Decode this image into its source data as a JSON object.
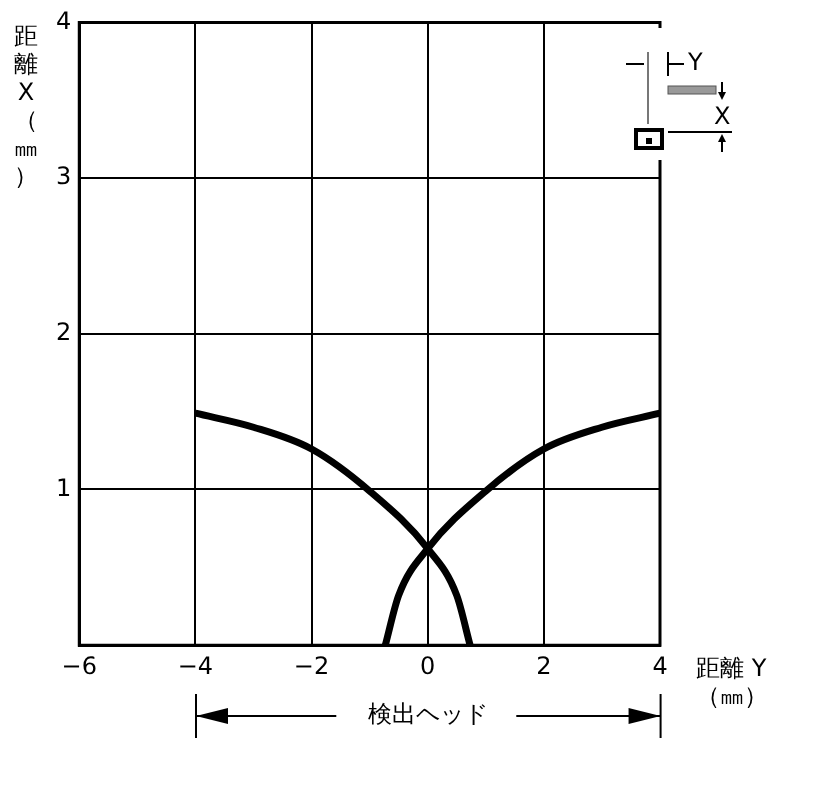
{
  "chart_data": {
    "type": "line",
    "xlabel": "距離 Y（㎜）",
    "ylabel": "距離X（㎜）",
    "series": [
      {
        "color": "#000000",
        "x": [
          -4,
          -3,
          -2,
          -1,
          0,
          0.5,
          0.73
        ],
        "values": [
          1.49,
          1.4,
          1.26,
          0.99,
          0.62,
          0.32,
          0
        ]
      },
      {
        "color": "#000000",
        "x": [
          4,
          3,
          2,
          1,
          0,
          -0.5,
          -0.73
        ],
        "values": [
          1.49,
          1.4,
          1.26,
          0.99,
          0.62,
          0.32,
          0
        ]
      }
    ],
    "xlim": [
      -6,
      4
    ],
    "xticks": [
      -6,
      -4,
      -2,
      0,
      2,
      4
    ],
    "ylim": [
      0,
      4
    ],
    "yticks": [
      {
        "value": 0,
        "label": null
      },
      1,
      2,
      3,
      4
    ],
    "grid": true,
    "legend": false,
    "marker": "none",
    "line_style": "solid",
    "annotations": [
      "検出ヘッド",
      "Y",
      "X"
    ]
  }
}
